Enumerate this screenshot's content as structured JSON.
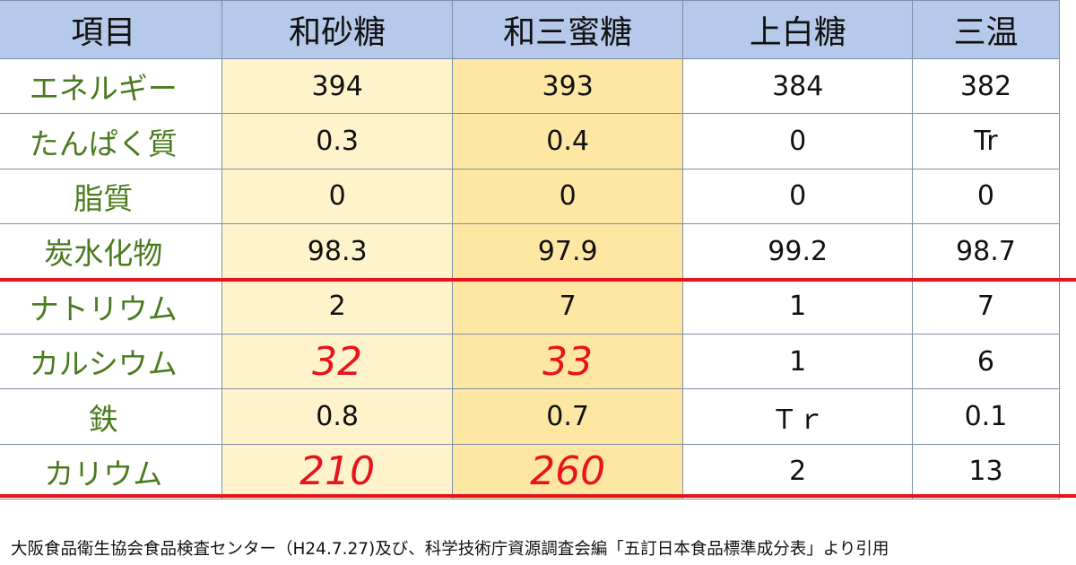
{
  "table": {
    "headers": [
      "項目",
      "和砂糖",
      "和三蜜糖",
      "上白糖",
      "三温"
    ],
    "rows": [
      {
        "item": "エネルギー",
        "values": [
          "394",
          "393",
          "384",
          "382"
        ]
      },
      {
        "item": "たんぱく質",
        "values": [
          "0.3",
          "0.4",
          "0",
          "Tr"
        ]
      },
      {
        "item": "脂質",
        "values": [
          "0",
          "0",
          "0",
          "0"
        ]
      },
      {
        "item": "炭水化物",
        "values": [
          "98.3",
          "97.9",
          "99.2",
          "98.7"
        ]
      },
      {
        "item": "ナトリウム",
        "values": [
          "2",
          "7",
          "1",
          "7"
        ]
      },
      {
        "item": "カルシウム",
        "values": [
          "32",
          "33",
          "1",
          "6"
        ]
      },
      {
        "item": "鉄",
        "values": [
          "0.8",
          "0.7",
          "Ｔｒ",
          "0.1"
        ]
      },
      {
        "item": "カリウム",
        "values": [
          "210",
          "260",
          "2",
          "13"
        ]
      }
    ]
  },
  "source": "大阪食品衛生協会食品検査センター（H24.7.27)及び、科学技術庁資源調査会編「五訂日本食品標準成分表」より引用",
  "colors": {
    "header_bg": "#b6c9ea",
    "col_wasanbon_light": "#fff3cc",
    "col_wasanbon_dark": "#fde7a3",
    "item_text": "#4a7a1e",
    "highlight": "#e8141c"
  }
}
